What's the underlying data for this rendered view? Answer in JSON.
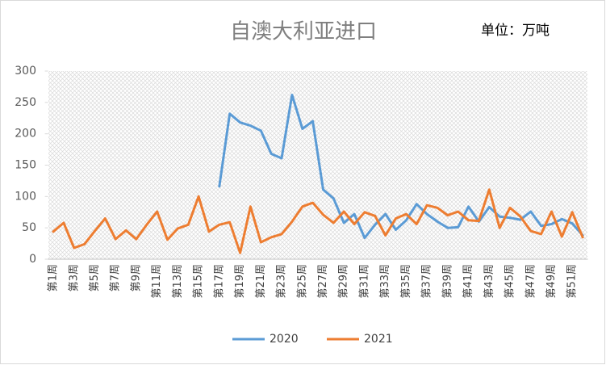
{
  "chart_data": {
    "type": "line",
    "title": "自澳大利亚进口",
    "subtitle": "单位：万吨",
    "categories": [
      "第1周",
      null,
      "第3周",
      null,
      "第5周",
      null,
      "第7周",
      null,
      "第9周",
      null,
      "第11周",
      null,
      "第13周",
      null,
      "第15周",
      null,
      "第17周",
      null,
      "第19周",
      null,
      "第21周",
      null,
      "第23周",
      null,
      "第25周",
      null,
      "第27周",
      null,
      "第29周",
      null,
      "第31周",
      null,
      "第33周",
      null,
      "第35周",
      null,
      "第37周",
      null,
      "第39周",
      null,
      "第41周",
      null,
      "第43周",
      null,
      "第45周",
      null,
      "第47周",
      null,
      "第49周",
      null,
      "第51周",
      null
    ],
    "series": [
      {
        "name": "2020",
        "color": "#5b9bd5",
        "values": [
          null,
          null,
          null,
          null,
          null,
          null,
          null,
          null,
          null,
          null,
          null,
          null,
          null,
          null,
          null,
          null,
          116,
          232,
          218,
          213,
          205,
          168,
          161,
          262,
          208,
          220,
          111,
          97,
          58,
          72,
          34,
          55,
          72,
          47,
          62,
          88,
          72,
          60,
          50,
          51,
          84,
          60,
          83,
          68,
          66,
          63,
          76,
          53,
          56,
          64,
          57,
          38
        ]
      },
      {
        "name": "2021",
        "color": "#ed7d31",
        "values": [
          44,
          58,
          18,
          24,
          45,
          65,
          32,
          46,
          32,
          55,
          76,
          31,
          49,
          55,
          100,
          44,
          55,
          59,
          10,
          84,
          27,
          35,
          40,
          60,
          84,
          90,
          71,
          58,
          76,
          56,
          75,
          69,
          38,
          65,
          72,
          56,
          86,
          82,
          70,
          76,
          62,
          61,
          111,
          50,
          82,
          68,
          45,
          40,
          76,
          36,
          75,
          35
        ]
      }
    ],
    "ylim": [
      0,
      300
    ],
    "yticks": [
      0,
      50,
      100,
      150,
      200,
      250,
      300
    ],
    "grid": false,
    "legend": "bottom"
  }
}
